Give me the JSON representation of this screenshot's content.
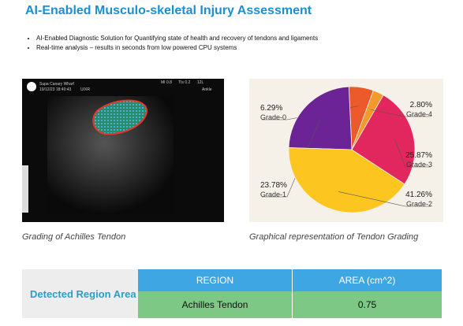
{
  "header": {
    "title": "AI-Enabled Musculo-skeletal Injury Assessment"
  },
  "bullets": [
    "AI-Enabled Diagnostic Solution for Quantifying state of health and recovery of tendons and ligaments",
    "Real-time analysis – results in seconds from low powered CPU systems"
  ],
  "ultrasound": {
    "site": "Supa Canary Wharf",
    "timestamp": "19/12/23 18:40:43",
    "mode": "U/XR",
    "mi": "MI 0.8",
    "tis": "TIs 0.2",
    "probe": "12L",
    "preset": "Ankle"
  },
  "captions": {
    "image": "Grading of Achilles Tendon",
    "chart": "Graphical representation of Tendon Grading"
  },
  "chart_data": {
    "type": "pie",
    "categories": [
      "Grade-0",
      "Grade-1",
      "Grade-2",
      "Grade-3",
      "Grade-4"
    ],
    "values": [
      6.29,
      23.78,
      41.26,
      25.87,
      2.8
    ],
    "value_labels": [
      "6.29%",
      "23.78%",
      "41.26%",
      "25.87%",
      "2.80%"
    ],
    "colors": [
      "#ec5a2c",
      "#6c2396",
      "#fcc520",
      "#e2275f",
      "#f39a2c"
    ]
  },
  "table": {
    "label": "Detected Region Area",
    "headers": [
      "REGION",
      "AREA (cm^2)"
    ],
    "rows": [
      [
        "Achilles Tendon",
        "0.75"
      ]
    ]
  }
}
